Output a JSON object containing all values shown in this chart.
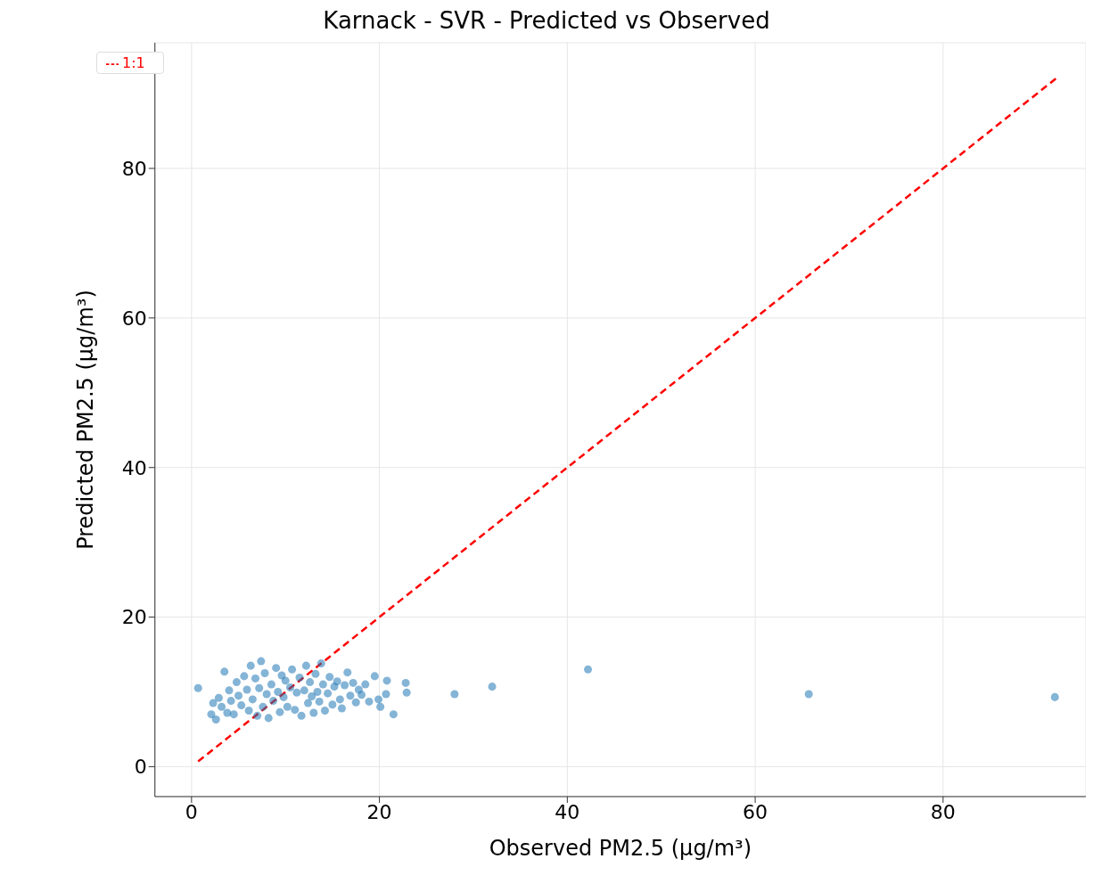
{
  "chart_data": {
    "type": "scatter",
    "title": "Karnack - SVR - Predicted vs Observed",
    "xlabel": "Observed PM2.5 (µg/m³)",
    "ylabel": "Predicted PM2.5 (µg/m³)",
    "xlim": [
      -3.9,
      95.2
    ],
    "ylim": [
      -4,
      96.8
    ],
    "xticks": [
      0,
      20,
      40,
      60,
      80
    ],
    "yticks": [
      0,
      20,
      40,
      60,
      80
    ],
    "grid": true,
    "legend": "top left",
    "series": [
      {
        "color": "#1f77b4",
        "marker": "circle",
        "x": [
          0.7,
          2.1,
          2.3,
          2.6,
          2.9,
          3.2,
          3.5,
          3.8,
          4.0,
          4.2,
          4.5,
          4.8,
          5.0,
          5.3,
          5.6,
          5.9,
          6.1,
          6.3,
          6.5,
          6.8,
          7.0,
          7.2,
          7.4,
          7.6,
          7.8,
          8.0,
          8.2,
          8.5,
          8.7,
          9.0,
          9.2,
          9.4,
          9.6,
          9.8,
          10.0,
          10.2,
          10.5,
          10.7,
          11.0,
          11.2,
          11.5,
          11.7,
          12.0,
          12.2,
          12.4,
          12.6,
          12.8,
          13.0,
          13.2,
          13.4,
          13.6,
          13.8,
          14.0,
          14.2,
          14.5,
          14.7,
          15.0,
          15.2,
          15.5,
          15.8,
          16.0,
          16.3,
          16.6,
          16.9,
          17.2,
          17.5,
          17.8,
          18.1,
          18.5,
          18.9,
          19.5,
          19.9,
          20.1,
          20.7,
          20.8,
          21.5,
          22.8,
          22.9,
          28.0,
          32.0,
          42.2,
          65.7,
          91.9
        ],
        "values": [
          10.5,
          7.0,
          8.5,
          6.3,
          9.2,
          8.0,
          12.7,
          7.2,
          10.2,
          8.8,
          7.0,
          11.3,
          9.5,
          8.2,
          12.1,
          10.3,
          7.5,
          13.5,
          9.0,
          11.8,
          6.8,
          10.5,
          14.1,
          8.0,
          12.5,
          9.7,
          6.5,
          11.0,
          8.8,
          13.2,
          10.0,
          7.3,
          12.2,
          9.3,
          11.5,
          8.0,
          10.6,
          13.0,
          7.6,
          9.9,
          11.9,
          6.8,
          10.2,
          13.5,
          8.5,
          11.3,
          9.4,
          7.2,
          12.4,
          10.0,
          8.7,
          13.8,
          11.0,
          7.5,
          9.8,
          12.0,
          8.3,
          10.7,
          11.4,
          9.0,
          7.8,
          10.9,
          12.6,
          9.5,
          11.2,
          8.6,
          10.3,
          9.6,
          11.0,
          8.7,
          12.1,
          9.0,
          8.0,
          9.7,
          11.5,
          7.0,
          11.2,
          9.9,
          9.7,
          10.7,
          13.0,
          9.7,
          9.3
        ]
      },
      {
        "type": "line",
        "name": "1:1",
        "color": "#ff0000",
        "line_style": "dashed",
        "marker": "none",
        "x": [
          0.7,
          92
        ],
        "values": [
          0.7,
          92
        ]
      }
    ]
  }
}
